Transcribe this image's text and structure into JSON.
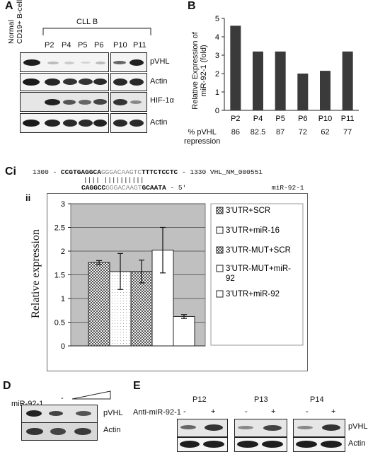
{
  "panels": {
    "A": "A",
    "B": "B",
    "C": "Ci",
    "Cii": "ii",
    "D": "D",
    "E": "E"
  },
  "panel_a": {
    "normal_label_line1": "Normal",
    "normal_label_line2": "CD19+ B-cells",
    "group_label": "CLL B",
    "lanes": [
      "P2",
      "P4",
      "P5",
      "P6",
      "P10",
      "P11"
    ],
    "row_labels": [
      "pVHL",
      "Actin",
      "HIF-1α",
      "Actin"
    ]
  },
  "panel_b": {
    "ylabel_line1": "Relative Expression of",
    "ylabel_line2": "miR-92-1 (fold)",
    "repression_label_line1": "% pVHL",
    "repression_label_line2": "repression",
    "repression_values": [
      "86",
      "82.5",
      "87",
      "72",
      "62",
      "77"
    ]
  },
  "panel_c": {
    "seq_top_start": "1300 - ",
    "seq_top_bold1": "CCGTGAGGCA",
    "seq_top_gray": "GGGACAAGT",
    "seq_top_colon": "C",
    "seq_top_bold2": "TTTCTCCTC",
    "seq_top_end": " - 1330 VHL_NM_000551",
    "seq_pairs": "|||| ||||||||||",
    "seq_bottom_bold1": "CAGGCC",
    "seq_bottom_gray": "GGGACAAGT",
    "seq_bottom_bold2": "GCAATA",
    "seq_bottom_end": " - 5'",
    "mirna_label": "miR-92-1"
  },
  "panel_d": {
    "treatment_label": "miR-92-1",
    "minus": "-",
    "row_labels": [
      "pVHL",
      "Actin"
    ]
  },
  "panel_e": {
    "patients": [
      "P12",
      "P13",
      "P14"
    ],
    "treatment_label": "Anti-miR-92-1",
    "signs": [
      "-",
      "+",
      "-",
      "+",
      "-",
      "+"
    ],
    "row_labels": [
      "pVHL",
      "Actin"
    ]
  },
  "chart_data": [
    {
      "type": "bar",
      "categories": [
        "P2",
        "P4",
        "P5",
        "P6",
        "P10",
        "P11"
      ],
      "values": [
        4.6,
        3.2,
        3.2,
        2.0,
        2.15,
        3.2
      ],
      "ylim": [
        0,
        5
      ],
      "yticks": [
        "0",
        "1",
        "2",
        "3",
        "4",
        "5"
      ],
      "ylabel": "Relative Expression of miR-92-1 (fold)",
      "bar_color": "#3a3a3a",
      "grid": false
    },
    {
      "type": "bar",
      "categories": [
        "3'UTR+SCR",
        "3'UTR+miR-16",
        "3'UTR-MUT+SCR",
        "3'UTR-MUT+miR-92",
        "3'UTR+miR-92"
      ],
      "legend_lines": [
        [
          "3'UTR+SCR"
        ],
        [
          "3'UTR+miR-16"
        ],
        [
          "3'UTR-MUT+SCR"
        ],
        [
          "3'UTR-MUT+miR-",
          "92"
        ],
        [
          "3'UTR+miR-92"
        ]
      ],
      "values": [
        1.76,
        1.57,
        1.57,
        2.02,
        0.62
      ],
      "errors": [
        0.04,
        0.38,
        0.24,
        0.48,
        0.04
      ],
      "ylim": [
        0,
        3
      ],
      "yticks": [
        "0",
        "0.5",
        "1",
        "1.5",
        "2",
        "2.5",
        "3"
      ],
      "ylabel": "Relative expression",
      "legend": "right",
      "plot_bg": "#c0c0c0",
      "grid": true
    }
  ]
}
